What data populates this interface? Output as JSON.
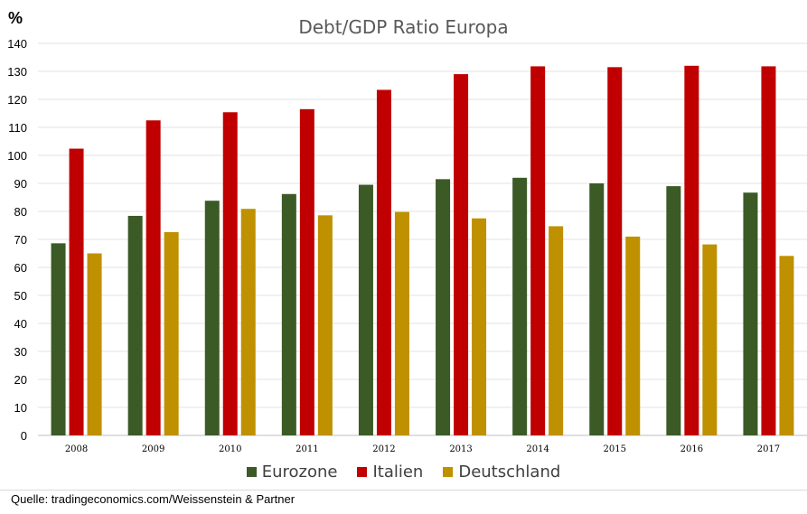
{
  "chart_data": {
    "type": "bar",
    "title": "Debt/GDP Ratio Europa",
    "ylabel": "%",
    "xlabel": "",
    "ylim": [
      0,
      140
    ],
    "yticks": [
      0,
      10,
      20,
      30,
      40,
      50,
      60,
      70,
      80,
      90,
      100,
      110,
      120,
      130,
      140
    ],
    "grid": true,
    "legend_position": "bottom",
    "categories": [
      "2008",
      "2009",
      "2010",
      "2011",
      "2012",
      "2013",
      "2014",
      "2015",
      "2016",
      "2017"
    ],
    "series": [
      {
        "name": "Eurozone",
        "color": "#3b5a26",
        "values": [
          68.6,
          78.4,
          83.8,
          86.2,
          89.5,
          91.5,
          92.0,
          90.0,
          89.0,
          86.7
        ]
      },
      {
        "name": "Italien",
        "color": "#c00000",
        "values": [
          102.4,
          112.5,
          115.4,
          116.5,
          123.4,
          129.0,
          131.8,
          131.5,
          132.0,
          131.8
        ]
      },
      {
        "name": "Deutschland",
        "color": "#bf9000",
        "values": [
          65.0,
          72.6,
          80.9,
          78.6,
          79.8,
          77.5,
          74.7,
          71.0,
          68.2,
          64.1
        ]
      }
    ]
  },
  "source": "Quelle: tradingeconomics.com/Weissenstein & Partner"
}
